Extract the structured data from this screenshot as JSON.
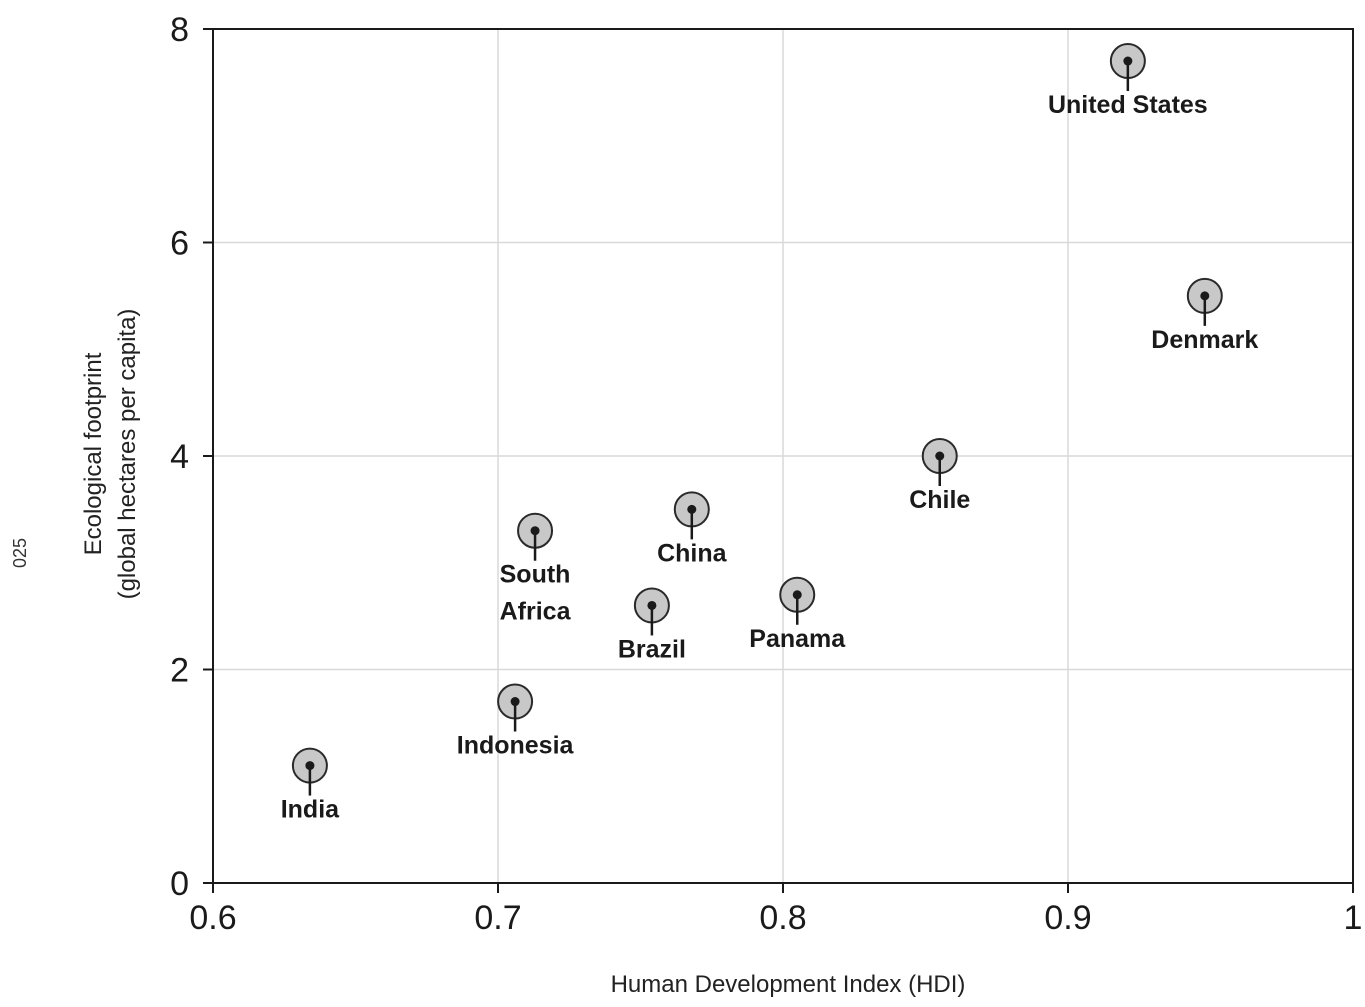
{
  "page": {
    "side_code": "025"
  },
  "chart_data": {
    "type": "scatter",
    "title": "",
    "xlabel": "Human Development Index (HDI)",
    "ylabel_line1": "Ecological footprint",
    "ylabel_line2": "(global hectares per capita)",
    "xlim": [
      0.6,
      1.0
    ],
    "ylim": [
      0,
      8
    ],
    "xticks": [
      0.6,
      0.7,
      0.8,
      0.9,
      1.0
    ],
    "xtick_labels": [
      "0.6",
      "0.7",
      "0.8",
      "0.9",
      "1"
    ],
    "yticks": [
      0,
      2,
      4,
      6,
      8
    ],
    "ytick_labels": [
      "0",
      "2",
      "4",
      "6",
      "8"
    ],
    "grid": true,
    "marker_fill": "#c8c8c8",
    "marker_stroke": "#2a2a2a",
    "points": [
      {
        "label": "India",
        "x": 0.634,
        "y": 1.1
      },
      {
        "label": "Indonesia",
        "x": 0.706,
        "y": 1.7
      },
      {
        "label": "South Africa",
        "label_lines": [
          "South",
          "Africa"
        ],
        "x": 0.713,
        "y": 3.3
      },
      {
        "label": "Brazil",
        "x": 0.754,
        "y": 2.6
      },
      {
        "label": "China",
        "x": 0.768,
        "y": 3.5
      },
      {
        "label": "Panama",
        "x": 0.805,
        "y": 2.7
      },
      {
        "label": "Chile",
        "x": 0.855,
        "y": 4.0
      },
      {
        "label": "United States",
        "x": 0.921,
        "y": 7.7
      },
      {
        "label": "Denmark",
        "x": 0.948,
        "y": 5.5
      }
    ]
  }
}
